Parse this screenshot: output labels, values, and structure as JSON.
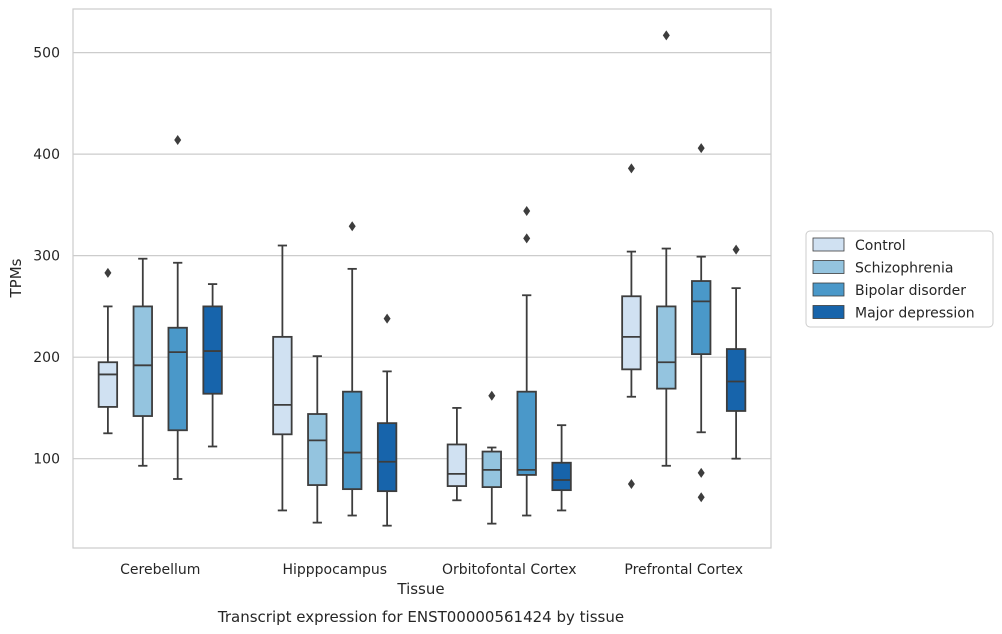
{
  "chart_data": {
    "type": "box",
    "title": "Transcript expression for ENST00000561424 by tissue",
    "xlabel": "Tissue",
    "ylabel": "TPMs",
    "ylim": [
      12,
      543
    ],
    "yticks": [
      100,
      200,
      300,
      400,
      500
    ],
    "grid": true,
    "legend_position": "right",
    "categories": [
      "Cerebellum",
      "Hipppocampus",
      "Orbitofontal Cortex",
      "Prefrontal Cortex"
    ],
    "series": [
      {
        "name": "Control",
        "color": "#d0e1f2",
        "boxes": [
          {
            "whisker_low": 125,
            "q1": 151,
            "median": 183,
            "q3": 195,
            "whisker_high": 250,
            "outliers": [
              283
            ]
          },
          {
            "whisker_low": 49,
            "q1": 124,
            "median": 153,
            "q3": 220,
            "whisker_high": 310,
            "outliers": []
          },
          {
            "whisker_low": 59,
            "q1": 73,
            "median": 85,
            "q3": 114,
            "whisker_high": 150,
            "outliers": []
          },
          {
            "whisker_low": 161,
            "q1": 188,
            "median": 220,
            "q3": 260,
            "whisker_high": 304,
            "outliers": [
              386,
              75
            ]
          }
        ]
      },
      {
        "name": "Schizophrenia",
        "color": "#94c4df",
        "boxes": [
          {
            "whisker_low": 93,
            "q1": 142,
            "median": 192,
            "q3": 250,
            "whisker_high": 297,
            "outliers": []
          },
          {
            "whisker_low": 37,
            "q1": 74,
            "median": 118,
            "q3": 144,
            "whisker_high": 201,
            "outliers": []
          },
          {
            "whisker_low": 36,
            "q1": 72,
            "median": 89,
            "q3": 107,
            "whisker_high": 111,
            "outliers": [
              162
            ]
          },
          {
            "whisker_low": 93,
            "q1": 169,
            "median": 195,
            "q3": 250,
            "whisker_high": 307,
            "outliers": [
              517
            ]
          }
        ]
      },
      {
        "name": "Bipolar disorder",
        "color": "#4a98c9",
        "boxes": [
          {
            "whisker_low": 80,
            "q1": 128,
            "median": 205,
            "q3": 229,
            "whisker_high": 293,
            "outliers": [
              414
            ]
          },
          {
            "whisker_low": 44,
            "q1": 70,
            "median": 106,
            "q3": 166,
            "whisker_high": 287,
            "outliers": [
              329
            ]
          },
          {
            "whisker_low": 44,
            "q1": 84,
            "median": 89,
            "q3": 166,
            "whisker_high": 261,
            "outliers": [
              344,
              317
            ]
          },
          {
            "whisker_low": 126,
            "q1": 203,
            "median": 255,
            "q3": 275,
            "whisker_high": 299,
            "outliers": [
              406,
              86,
              62
            ]
          }
        ]
      },
      {
        "name": "Major depression",
        "color": "#1764ab",
        "boxes": [
          {
            "whisker_low": 112,
            "q1": 164,
            "median": 206,
            "q3": 250,
            "whisker_high": 272,
            "outliers": []
          },
          {
            "whisker_low": 34,
            "q1": 68,
            "median": 97,
            "q3": 135,
            "whisker_high": 186,
            "outliers": [
              238
            ]
          },
          {
            "whisker_low": 49,
            "q1": 69,
            "median": 79,
            "q3": 96,
            "whisker_high": 133,
            "outliers": []
          },
          {
            "whisker_low": 100,
            "q1": 147,
            "median": 176,
            "q3": 208,
            "whisker_high": 268,
            "outliers": [
              306
            ]
          }
        ]
      }
    ]
  }
}
